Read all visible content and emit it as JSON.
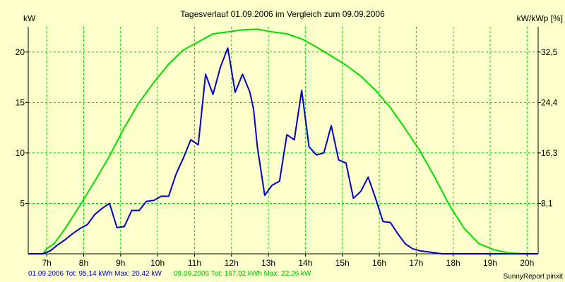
{
  "chart_data": {
    "type": "line",
    "title": "Tagesverlauf 01.09.2006 im Vergleich zum 09.09.2006",
    "ylabel_left": "kW",
    "ylabel_right": "kW/kWp [%]",
    "x_ticks": [
      "7h",
      "8h",
      "9h",
      "10h",
      "11h",
      "12h",
      "13h",
      "14h",
      "15h",
      "16h",
      "17h",
      "18h",
      "19h",
      "20h"
    ],
    "y_ticks_left": [
      "5",
      "10",
      "15",
      "20"
    ],
    "y_ticks_right": [
      "8,1",
      "16,3",
      "24,4",
      "32,5"
    ],
    "xlim": [
      6.5,
      20.3
    ],
    "ylim": [
      0,
      22.5
    ],
    "grid": true,
    "colors": {
      "series1": "#0000cc",
      "series2": "#00dd00",
      "grid": "#00cc00",
      "background": "#ffffcc"
    },
    "series": [
      {
        "x": [
          6.5,
          6.9,
          7.1,
          7.3,
          7.5,
          7.7,
          7.9,
          8.1,
          8.3,
          8.5,
          8.7,
          8.9,
          9.1,
          9.3,
          9.5,
          9.7,
          9.9,
          10.1,
          10.3,
          10.5,
          10.7,
          10.9,
          11.1,
          11.3,
          11.5,
          11.7,
          11.9,
          12.1,
          12.3,
          12.5,
          12.6,
          12.7,
          12.9,
          13.1,
          13.3,
          13.5,
          13.7,
          13.9,
          14.1,
          14.3,
          14.5,
          14.7,
          14.9,
          15.1,
          15.3,
          15.5,
          15.7,
          15.9,
          16.1,
          16.3,
          16.5,
          16.7,
          16.9,
          17.1,
          17.3,
          17.5,
          17.7,
          17.9,
          18.1,
          18.3,
          18.5,
          18.7,
          18.9,
          19.1,
          19.3,
          19.5,
          19.7,
          19.9,
          20.1,
          20.3
        ],
        "values": [
          0.0,
          0.0,
          0.3,
          0.9,
          1.4,
          2.0,
          2.5,
          2.9,
          3.9,
          4.5,
          5.0,
          2.6,
          2.7,
          4.3,
          4.3,
          5.2,
          5.3,
          5.7,
          5.7,
          7.9,
          9.5,
          11.3,
          10.8,
          17.8,
          15.8,
          18.5,
          20.4,
          16.0,
          17.8,
          16.0,
          14.3,
          10.6,
          5.8,
          6.8,
          7.2,
          11.8,
          11.3,
          16.2,
          10.6,
          9.8,
          10.0,
          12.7,
          9.3,
          9.0,
          5.5,
          6.2,
          7.6,
          5.5,
          3.2,
          3.1,
          2.0,
          1.0,
          0.5,
          0.3,
          0.2,
          0.1,
          0.0,
          0.0,
          0.0,
          0.0,
          0.0,
          0.0,
          0.0,
          0.0,
          0.0,
          0.0,
          0.0,
          0.0,
          0.0,
          0.0
        ]
      },
      {
        "x": [
          6.5,
          6.9,
          7.0,
          7.2,
          7.5,
          7.9,
          8.3,
          8.7,
          9.1,
          9.5,
          9.9,
          10.3,
          10.7,
          11.1,
          11.5,
          11.9,
          12.3,
          12.7,
          13.1,
          13.5,
          13.9,
          14.3,
          14.7,
          15.1,
          15.5,
          15.9,
          16.3,
          16.7,
          17.1,
          17.5,
          17.9,
          18.3,
          18.7,
          19.1,
          19.5,
          19.9,
          20.3
        ],
        "values": [
          0.0,
          0.0,
          0.5,
          1.0,
          2.5,
          4.8,
          7.2,
          9.7,
          12.5,
          15.0,
          17.0,
          18.8,
          20.2,
          21.0,
          21.8,
          22.0,
          22.2,
          22.26,
          22.0,
          21.8,
          21.3,
          20.5,
          19.6,
          18.7,
          17.6,
          16.2,
          14.5,
          12.4,
          10.2,
          7.6,
          4.8,
          2.5,
          1.0,
          0.4,
          0.1,
          0.0,
          0.0
        ]
      }
    ]
  },
  "footer": {
    "series1_summary": "01.09.2006 Tot: 95,14 kWh Max: 20,42 kW",
    "series2_summary": "09.09.2006 Tot: 167,92 kWh Max: 22,26 kW",
    "credit": "SunnyReport pinxit"
  }
}
